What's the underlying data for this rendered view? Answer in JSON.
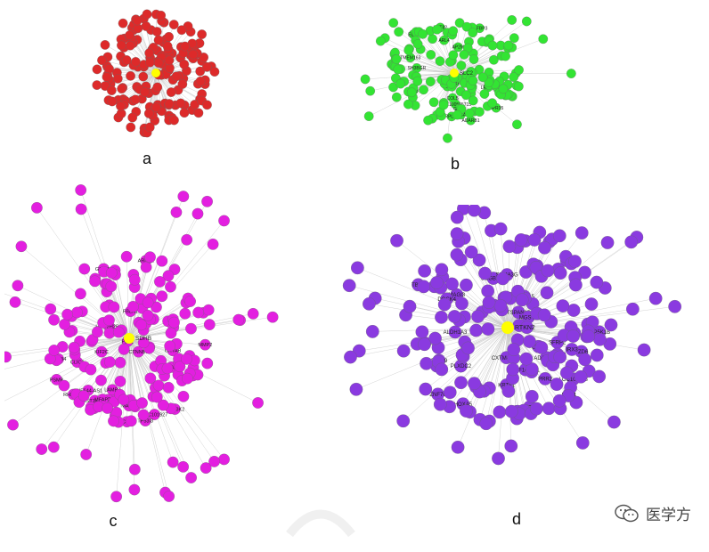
{
  "panels": [
    {
      "id": "a",
      "label": "a",
      "node_color": "#dd2a2a",
      "hub_color": "#ffff00",
      "hub_label": "",
      "node_labels": []
    },
    {
      "id": "b",
      "label": "b",
      "node_color": "#33e433",
      "hub_color": "#ffff00",
      "hub_label": "SLC2",
      "node_labels": [
        "LOC100505715",
        "TMEM163",
        "KRT82",
        "RPL38",
        "ADARB1",
        "GGT2",
        "SOCS3",
        "COL5",
        "CDCA8",
        "CDK6",
        "PRAG1",
        "IGFBP3",
        "ARL4",
        "AP2M",
        "LRRC2",
        "TGFB1",
        "SH3BGR",
        "GPR35",
        "CD24",
        "ELF3"
      ]
    },
    {
      "id": "c",
      "label": "c",
      "node_color": "#e31fe0",
      "hub_color": "#ffff00",
      "hub_label": "SDHB",
      "node_labels": [
        "MAGI2",
        "CTNNB1",
        "CRYAB",
        "TBCE",
        "HIST1H2BD",
        "HIST2H2BC",
        "FBLN1",
        "ABCB4",
        "RHBDD1",
        "CLIC3",
        "ARHGAP2",
        "LOC101927",
        "ZNF644-AS1",
        "MAP3K2",
        "PSMB",
        "CDKN2C",
        "MMP2",
        "GSTM3",
        "HIST1H1",
        "TP53I3",
        "PLK2",
        "LAMB3",
        "KIF2C",
        "ARRB1",
        "MFAP2",
        "ACTN4"
      ]
    },
    {
      "id": "d",
      "label": "d",
      "node_color": "#8a3ae0",
      "hub_color": "#ffff00",
      "hub_label": "RTKN2",
      "node_labels": [
        "CXTM-AS13",
        "LOC101928",
        "SCGB1C1",
        "ZNF14-AS1",
        "RAP1-AS1",
        "TSPAN15",
        "PLXDC2",
        "ADAMTS5",
        "SLC7A5",
        "TSP51",
        "PRR2",
        "MGST3",
        "KCNJ16",
        "SEMA3G",
        "ZNF76",
        "ALDH1A3",
        "CEP89",
        "FZD6",
        "PIP5K1B",
        "MAGI3",
        "SFRP2",
        "KRT81",
        "LRP4",
        "LMO4",
        "RAB20",
        "HOXA5",
        "TBX3",
        "IRX3",
        "DOCK4",
        "NR2F2"
      ]
    }
  ],
  "watermark": {
    "text": "医学方",
    "icon": "wechat-icon"
  }
}
